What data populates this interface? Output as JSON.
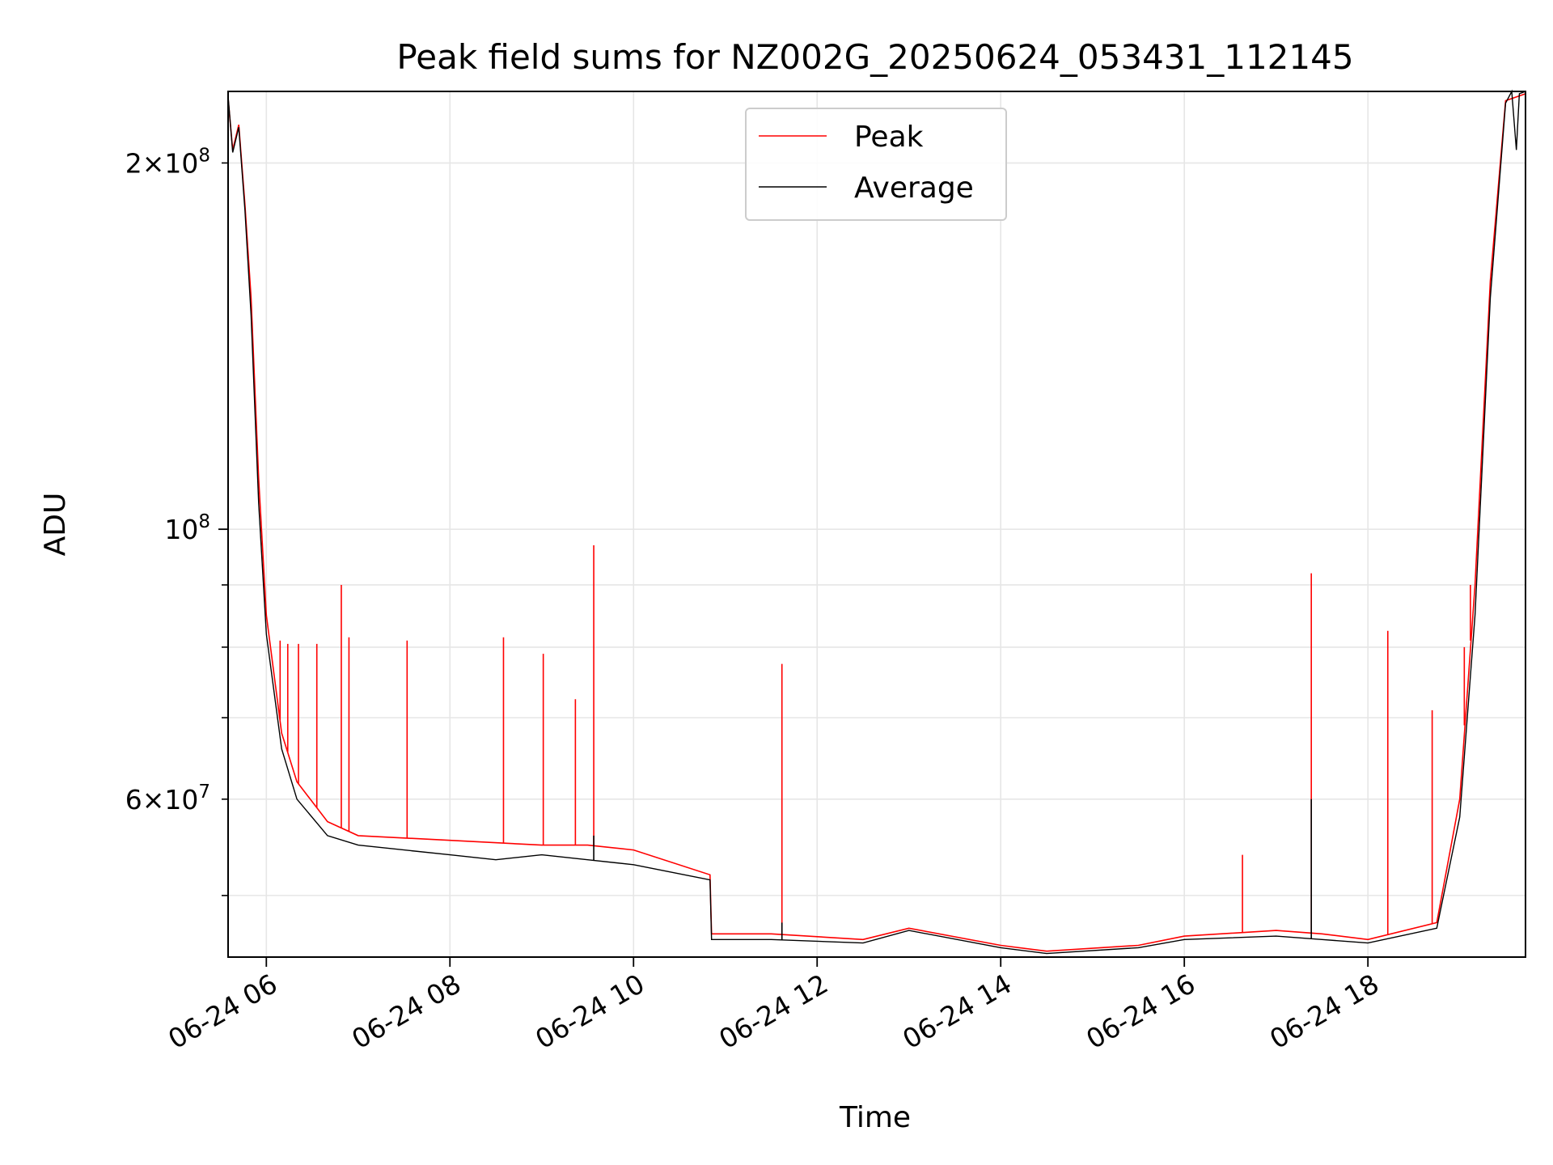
{
  "chart_data": {
    "type": "line",
    "title": "Peak field sums for NZ002G_20250624_053431_112145",
    "xlabel": "Time",
    "ylabel": "ADU",
    "yscale": "log",
    "grid": true,
    "legend_position": "upper center",
    "x_ticks": [
      "06-24 06",
      "06-24 08",
      "06-24 10",
      "06-24 12",
      "06-24 14",
      "06-24 16",
      "06-24 18"
    ],
    "y_ticks": [
      {
        "value": 200000000,
        "mantissa": "2",
        "exponent": "8"
      },
      {
        "value": 100000000,
        "mantissa": "",
        "exponent": "8"
      },
      {
        "value": 60000000,
        "mantissa": "6",
        "exponent": "7"
      }
    ],
    "xlim": [
      "2025-06-24 05:35",
      "2025-06-24 19:43"
    ],
    "ylim": [
      44500000,
      229000000
    ],
    "series": [
      {
        "name": "Peak",
        "color": "#ff0000",
        "points": [
          [
            "2025-06-24 05:35",
            226000000
          ],
          [
            "2025-06-24 05:38",
            205000000
          ],
          [
            "2025-06-24 05:42",
            215000000
          ],
          [
            "2025-06-24 05:46",
            185000000
          ],
          [
            "2025-06-24 05:50",
            155000000
          ],
          [
            "2025-06-24 05:55",
            110000000
          ],
          [
            "2025-06-24 06:00",
            85000000
          ],
          [
            "2025-06-24 06:10",
            68000000
          ],
          [
            "2025-06-24 06:20",
            62000000
          ],
          [
            "2025-06-24 06:40",
            57500000
          ],
          [
            "2025-06-24 07:00",
            56000000
          ],
          [
            "2025-06-24 08:00",
            55500000
          ],
          [
            "2025-06-24 09:00",
            55000000
          ],
          [
            "2025-06-24 09:30",
            55000000
          ],
          [
            "2025-06-24 10:00",
            54500000
          ],
          [
            "2025-06-24 10:50",
            52000000
          ],
          [
            "2025-06-24 10:51",
            46500000
          ],
          [
            "2025-06-24 11:30",
            46500000
          ],
          [
            "2025-06-24 12:30",
            46000000
          ],
          [
            "2025-06-24 13:00",
            47000000
          ],
          [
            "2025-06-24 14:00",
            45500000
          ],
          [
            "2025-06-24 14:30",
            45000000
          ],
          [
            "2025-06-24 15:30",
            45500000
          ],
          [
            "2025-06-24 16:00",
            46300000
          ],
          [
            "2025-06-24 17:00",
            46800000
          ],
          [
            "2025-06-24 17:30",
            46500000
          ],
          [
            "2025-06-24 18:00",
            46000000
          ],
          [
            "2025-06-24 18:45",
            47500000
          ],
          [
            "2025-06-24 19:00",
            60000000
          ],
          [
            "2025-06-24 19:10",
            90000000
          ],
          [
            "2025-06-24 19:20",
            160000000
          ],
          [
            "2025-06-24 19:30",
            225000000
          ],
          [
            "2025-06-24 19:43",
            228000000
          ]
        ],
        "spikes": [
          [
            "2025-06-24 06:09",
            81000000
          ],
          [
            "2025-06-24 06:14",
            80500000
          ],
          [
            "2025-06-24 06:21",
            80500000
          ],
          [
            "2025-06-24 06:33",
            80500000
          ],
          [
            "2025-06-24 06:49",
            90000000
          ],
          [
            "2025-06-24 06:54",
            81500000
          ],
          [
            "2025-06-24 07:32",
            81000000
          ],
          [
            "2025-06-24 08:35",
            81500000
          ],
          [
            "2025-06-24 09:01",
            79000000
          ],
          [
            "2025-06-24 09:22",
            72500000
          ],
          [
            "2025-06-24 09:34",
            97000000
          ],
          [
            "2025-06-24 11:37",
            77500000
          ],
          [
            "2025-06-24 16:38",
            54000000
          ],
          [
            "2025-06-24 17:23",
            92000000
          ],
          [
            "2025-06-24 18:13",
            82500000
          ],
          [
            "2025-06-24 18:42",
            71000000
          ],
          [
            "2025-06-24 19:03",
            80000000
          ],
          [
            "2025-06-24 19:07",
            90000000
          ]
        ]
      },
      {
        "name": "Average",
        "color": "#000000",
        "points": [
          [
            "2025-06-24 05:35",
            227000000
          ],
          [
            "2025-06-24 05:38",
            204000000
          ],
          [
            "2025-06-24 05:42",
            214000000
          ],
          [
            "2025-06-24 05:46",
            183000000
          ],
          [
            "2025-06-24 05:50",
            150000000
          ],
          [
            "2025-06-24 05:55",
            105000000
          ],
          [
            "2025-06-24 06:00",
            82000000
          ],
          [
            "2025-06-24 06:10",
            66000000
          ],
          [
            "2025-06-24 06:20",
            60000000
          ],
          [
            "2025-06-24 06:40",
            56000000
          ],
          [
            "2025-06-24 07:00",
            55000000
          ],
          [
            "2025-06-24 08:00",
            54000000
          ],
          [
            "2025-06-24 08:30",
            53500000
          ],
          [
            "2025-06-24 09:00",
            54000000
          ],
          [
            "2025-06-24 09:30",
            53500000
          ],
          [
            "2025-06-24 10:00",
            53000000
          ],
          [
            "2025-06-24 10:50",
            51500000
          ],
          [
            "2025-06-24 10:51",
            46000000
          ],
          [
            "2025-06-24 11:30",
            46000000
          ],
          [
            "2025-06-24 12:30",
            45700000
          ],
          [
            "2025-06-24 13:00",
            46800000
          ],
          [
            "2025-06-24 14:00",
            45300000
          ],
          [
            "2025-06-24 14:30",
            44800000
          ],
          [
            "2025-06-24 15:30",
            45300000
          ],
          [
            "2025-06-24 16:00",
            46000000
          ],
          [
            "2025-06-24 17:00",
            46300000
          ],
          [
            "2025-06-24 17:30",
            46000000
          ],
          [
            "2025-06-24 18:00",
            45700000
          ],
          [
            "2025-06-24 18:45",
            47000000
          ],
          [
            "2025-06-24 19:00",
            58000000
          ],
          [
            "2025-06-24 19:10",
            85000000
          ],
          [
            "2025-06-24 19:20",
            155000000
          ],
          [
            "2025-06-24 19:30",
            224000000
          ],
          [
            "2025-06-24 19:34",
            229000000
          ],
          [
            "2025-06-24 19:37",
            205000000
          ],
          [
            "2025-06-24 19:39",
            228000000
          ],
          [
            "2025-06-24 19:43",
            229000000
          ]
        ],
        "spikes": [
          [
            "2025-06-24 09:34",
            56000000
          ],
          [
            "2025-06-24 17:23",
            60000000
          ],
          [
            "2025-06-24 11:37",
            47500000
          ]
        ]
      }
    ]
  }
}
